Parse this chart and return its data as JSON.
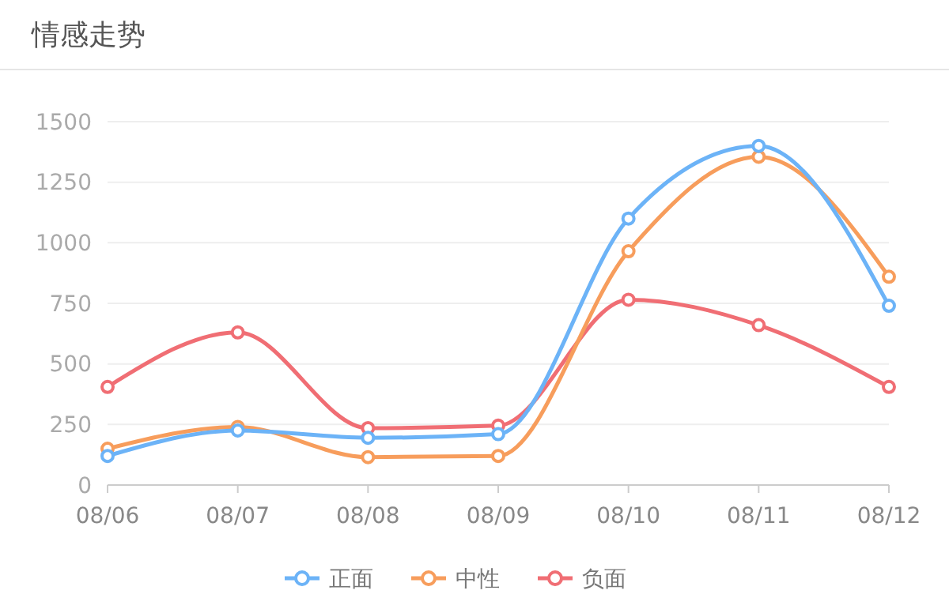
{
  "chart_data": {
    "type": "line",
    "title": "情感走势",
    "categories": [
      "08/06",
      "08/07",
      "08/08",
      "08/09",
      "08/10",
      "08/11",
      "08/12"
    ],
    "series": [
      {
        "name": "正面",
        "color": "#6cb3f7",
        "values": [
          120,
          225,
          195,
          210,
          1100,
          1400,
          740
        ]
      },
      {
        "name": "中性",
        "color": "#f79d5c",
        "values": [
          150,
          240,
          115,
          120,
          965,
          1355,
          860
        ]
      },
      {
        "name": "负面",
        "color": "#f06e74",
        "values": [
          405,
          630,
          235,
          245,
          765,
          660,
          405
        ]
      }
    ],
    "ylim": [
      0,
      1500
    ],
    "yticks": [
      0,
      250,
      500,
      750,
      1000,
      1250,
      1500
    ],
    "grid": "y",
    "legend": "bottom",
    "marker": "circle",
    "line_style": "solid"
  }
}
